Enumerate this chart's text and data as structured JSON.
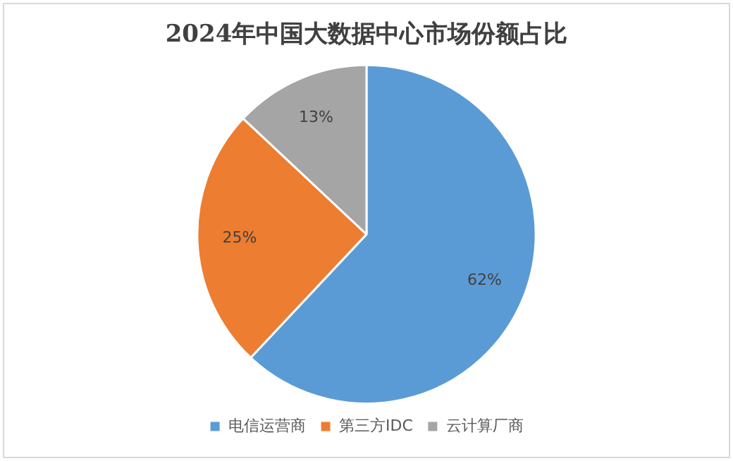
{
  "chart_data": {
    "type": "pie",
    "title": "2024年中国大数据中心市场份额占比",
    "categories": [
      "电信运营商",
      "第三方IDC",
      "云计算厂商"
    ],
    "values": [
      62,
      25,
      13
    ],
    "colors": [
      "#5b9bd5",
      "#ed7d31",
      "#a5a5a5"
    ],
    "value_labels": [
      "62%",
      "25%",
      "13%"
    ],
    "legend": "bottom"
  }
}
